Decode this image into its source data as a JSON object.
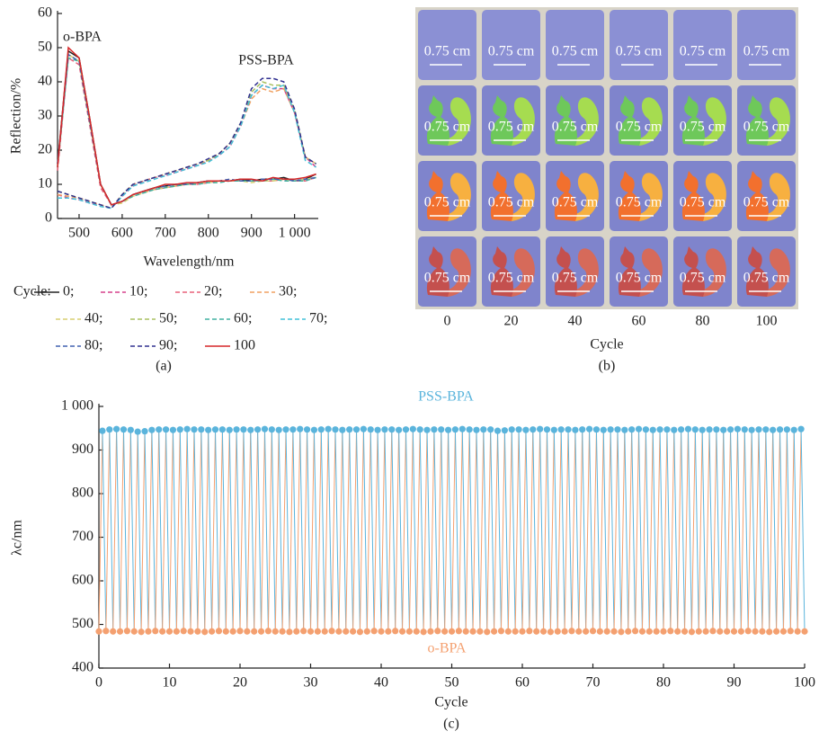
{
  "chart_data": [
    {
      "type": "line",
      "caption": "(a)",
      "xlabel": "Wavelength/nm",
      "ylabel": "Reflection/%",
      "annotations": [
        "o-BPA",
        "PSS-BPA"
      ],
      "legend_title": "Cycle:",
      "xlim": [
        450,
        1055
      ],
      "ylim": [
        0,
        60
      ],
      "xticks": [
        500,
        600,
        700,
        800,
        900,
        {
          "value": 1000,
          "label": "1 000"
        }
      ],
      "yticks": [
        0,
        10,
        20,
        30,
        40,
        50,
        60
      ],
      "x": [
        450,
        475,
        500,
        525,
        550,
        575,
        600,
        625,
        650,
        675,
        700,
        725,
        750,
        775,
        800,
        825,
        850,
        875,
        900,
        925,
        950,
        975,
        1000,
        1025,
        1050
      ],
      "series": [
        {
          "name": "0;",
          "color": "#222222",
          "style": "solid",
          "values": [
            16,
            49,
            47,
            29,
            10,
            4,
            5,
            7,
            8,
            9,
            9.5,
            10,
            10,
            10.5,
            11,
            11,
            11,
            11.5,
            11,
            11.5,
            11.5,
            12,
            11,
            11.5,
            13
          ]
        },
        {
          "name": "10;",
          "color": "#d6408c",
          "style": "dashed",
          "values": [
            7,
            6,
            5.5,
            4.5,
            4,
            3,
            6.5,
            9.5,
            11,
            12,
            12.5,
            13.5,
            14.5,
            15.5,
            17,
            18.5,
            21,
            27,
            36,
            39,
            38,
            38,
            31,
            18,
            15
          ]
        },
        {
          "name": "20;",
          "color": "#e8607a",
          "style": "dashed",
          "values": [
            14,
            47,
            45,
            27,
            9,
            4,
            5,
            7,
            8,
            8.5,
            9,
            9.5,
            10,
            10,
            10.5,
            11,
            11,
            11,
            11,
            11,
            11,
            11.5,
            11,
            11,
            12
          ]
        },
        {
          "name": "30;",
          "color": "#f0a060",
          "style": "dashed",
          "values": [
            7,
            6.5,
            6,
            5,
            4,
            3,
            7,
            10,
            11,
            12,
            13,
            14,
            15,
            16,
            17,
            19,
            22,
            27,
            35,
            38,
            37,
            38,
            31,
            18,
            16
          ]
        },
        {
          "name": "40;",
          "color": "#d8cf70",
          "style": "dashed",
          "values": [
            15,
            48,
            46,
            28,
            10,
            4,
            4.5,
            6.5,
            7.5,
            8.5,
            9,
            9.5,
            10,
            10.5,
            10.5,
            11,
            11,
            11,
            10.5,
            11,
            11,
            11.5,
            11,
            11.5,
            12
          ]
        },
        {
          "name": "50;",
          "color": "#a8c060",
          "style": "dashed",
          "values": [
            8,
            7,
            6,
            5,
            4,
            3,
            7,
            10,
            11,
            12,
            13,
            14,
            15,
            16,
            17,
            19,
            22,
            28,
            37,
            40,
            39,
            39,
            32,
            18,
            16
          ]
        },
        {
          "name": "60;",
          "color": "#40b0a0",
          "style": "dashed",
          "values": [
            15,
            47,
            46,
            28,
            10,
            4,
            5,
            6.5,
            7.5,
            8.5,
            9,
            9.5,
            10,
            10,
            10.5,
            10.5,
            11,
            11,
            11,
            11,
            11.5,
            11,
            11,
            11,
            12
          ]
        },
        {
          "name": "70;",
          "color": "#40c0d8",
          "style": "dashed",
          "values": [
            6,
            6,
            5.5,
            4.5,
            3.5,
            3,
            6.5,
            9.5,
            10.5,
            11.5,
            12.5,
            13.5,
            14.5,
            15.5,
            16.5,
            18.5,
            21,
            27,
            36,
            39,
            38,
            39,
            31,
            17,
            15
          ]
        },
        {
          "name": "80;",
          "color": "#4060b0",
          "style": "dashed",
          "values": [
            16,
            48,
            46,
            28,
            10,
            4,
            5,
            7,
            8,
            9,
            9.5,
            10,
            10,
            10.5,
            11,
            11,
            11.5,
            11,
            11,
            11.5,
            11.5,
            11.5,
            11,
            11.5,
            12
          ]
        },
        {
          "name": "90;",
          "color": "#303090",
          "style": "dashed",
          "values": [
            8,
            7,
            6,
            5,
            4,
            3,
            7,
            10,
            11,
            12,
            13,
            14,
            15,
            16,
            17.5,
            19,
            22,
            28,
            38,
            41,
            41,
            40,
            32,
            18,
            16
          ]
        },
        {
          "name": "100",
          "color": "#d62728",
          "style": "solid",
          "values": [
            15,
            50,
            47,
            29,
            10,
            4,
            5,
            7,
            8,
            9,
            10,
            10,
            10.5,
            10.5,
            11,
            11,
            11,
            11.5,
            11.5,
            11,
            12,
            11.5,
            11.5,
            12,
            13
          ]
        }
      ]
    },
    {
      "type": "image",
      "caption": "(b)",
      "xlabel": "Cycle",
      "scale_label": "0.75 cm",
      "categories": [
        "0",
        "20",
        "40",
        "60",
        "80",
        "100"
      ]
    },
    {
      "type": "zigzag",
      "caption": "(c)",
      "xlabel": "Cycle",
      "ylabel": "λc/nm",
      "xlim": [
        0,
        100
      ],
      "ylim": [
        400,
        1000
      ],
      "xticks": [
        0,
        10,
        20,
        30,
        40,
        50,
        60,
        70,
        80,
        90,
        100
      ],
      "yticks": [
        400,
        500,
        600,
        700,
        800,
        900,
        {
          "value": 1000,
          "label": "1 000"
        }
      ],
      "series": [
        {
          "name": "o-BPA",
          "color": "#f4a070",
          "x": [
            0,
            1,
            2,
            3,
            4,
            5,
            6,
            7,
            8,
            9,
            10,
            11,
            12,
            13,
            14,
            15,
            16,
            17,
            18,
            19,
            20,
            21,
            22,
            23,
            24,
            25,
            26,
            27,
            28,
            29,
            30,
            31,
            32,
            33,
            34,
            35,
            36,
            37,
            38,
            39,
            40,
            41,
            42,
            43,
            44,
            45,
            46,
            47,
            48,
            49,
            50,
            51,
            52,
            53,
            54,
            55,
            56,
            57,
            58,
            59,
            60,
            61,
            62,
            63,
            64,
            65,
            66,
            67,
            68,
            69,
            70,
            71,
            72,
            73,
            74,
            75,
            76,
            77,
            78,
            79,
            80,
            81,
            82,
            83,
            84,
            85,
            86,
            87,
            88,
            89,
            90,
            91,
            92,
            93,
            94,
            95,
            96,
            97,
            98,
            99,
            100
          ],
          "values": [
            484,
            485,
            484,
            484,
            485,
            484,
            483,
            484,
            485,
            484,
            484,
            484,
            485,
            484,
            484,
            483,
            484,
            485,
            484,
            484,
            485,
            484,
            484,
            484,
            485,
            484,
            484,
            483,
            484,
            485,
            484,
            484,
            484,
            485,
            484,
            484,
            484,
            483,
            484,
            485,
            484,
            484,
            485,
            484,
            484,
            484,
            483,
            484,
            485,
            484,
            484,
            485,
            484,
            484,
            484,
            483,
            484,
            485,
            484,
            484,
            484,
            485,
            484,
            484,
            483,
            484,
            484,
            485,
            484,
            484,
            485,
            484,
            484,
            484,
            483,
            484,
            485,
            484,
            484,
            484,
            484,
            485,
            484,
            484,
            483,
            484,
            484,
            485,
            484,
            484,
            484,
            484,
            485,
            484,
            484,
            483,
            484,
            484,
            485,
            484,
            484
          ]
        },
        {
          "name": "PSS-BPA",
          "color": "#5ab4dc",
          "x": [
            0.5,
            1.5,
            2.5,
            3.5,
            4.5,
            5.5,
            6.5,
            7.5,
            8.5,
            9.5,
            10.5,
            11.5,
            12.5,
            13.5,
            14.5,
            15.5,
            16.5,
            17.5,
            18.5,
            19.5,
            20.5,
            21.5,
            22.5,
            23.5,
            24.5,
            25.5,
            26.5,
            27.5,
            28.5,
            29.5,
            30.5,
            31.5,
            32.5,
            33.5,
            34.5,
            35.5,
            36.5,
            37.5,
            38.5,
            39.5,
            40.5,
            41.5,
            42.5,
            43.5,
            44.5,
            45.5,
            46.5,
            47.5,
            48.5,
            49.5,
            50.5,
            51.5,
            52.5,
            53.5,
            54.5,
            55.5,
            56.5,
            57.5,
            58.5,
            59.5,
            60.5,
            61.5,
            62.5,
            63.5,
            64.5,
            65.5,
            66.5,
            67.5,
            68.5,
            69.5,
            70.5,
            71.5,
            72.5,
            73.5,
            74.5,
            75.5,
            76.5,
            77.5,
            78.5,
            79.5,
            80.5,
            81.5,
            82.5,
            83.5,
            84.5,
            85.5,
            86.5,
            87.5,
            88.5,
            89.5,
            90.5,
            91.5,
            92.5,
            93.5,
            94.5,
            95.5,
            96.5,
            97.5,
            98.5,
            99.5
          ],
          "values": [
            944,
            947,
            948,
            947,
            946,
            942,
            943,
            946,
            947,
            947,
            946,
            947,
            948,
            947,
            947,
            946,
            947,
            947,
            946,
            947,
            947,
            946,
            947,
            948,
            947,
            946,
            947,
            947,
            948,
            947,
            946,
            947,
            948,
            947,
            946,
            947,
            947,
            948,
            947,
            946,
            947,
            947,
            946,
            947,
            948,
            947,
            946,
            947,
            947,
            946,
            947,
            948,
            947,
            946,
            947,
            947,
            944,
            945,
            947,
            947,
            946,
            947,
            948,
            947,
            946,
            947,
            947,
            946,
            947,
            948,
            947,
            946,
            947,
            947,
            946,
            947,
            948,
            947,
            946,
            947,
            947,
            946,
            947,
            948,
            947,
            946,
            947,
            947,
            946,
            947,
            948,
            947,
            946,
            947,
            947,
            946,
            947,
            947,
            946,
            948
          ]
        }
      ]
    }
  ]
}
